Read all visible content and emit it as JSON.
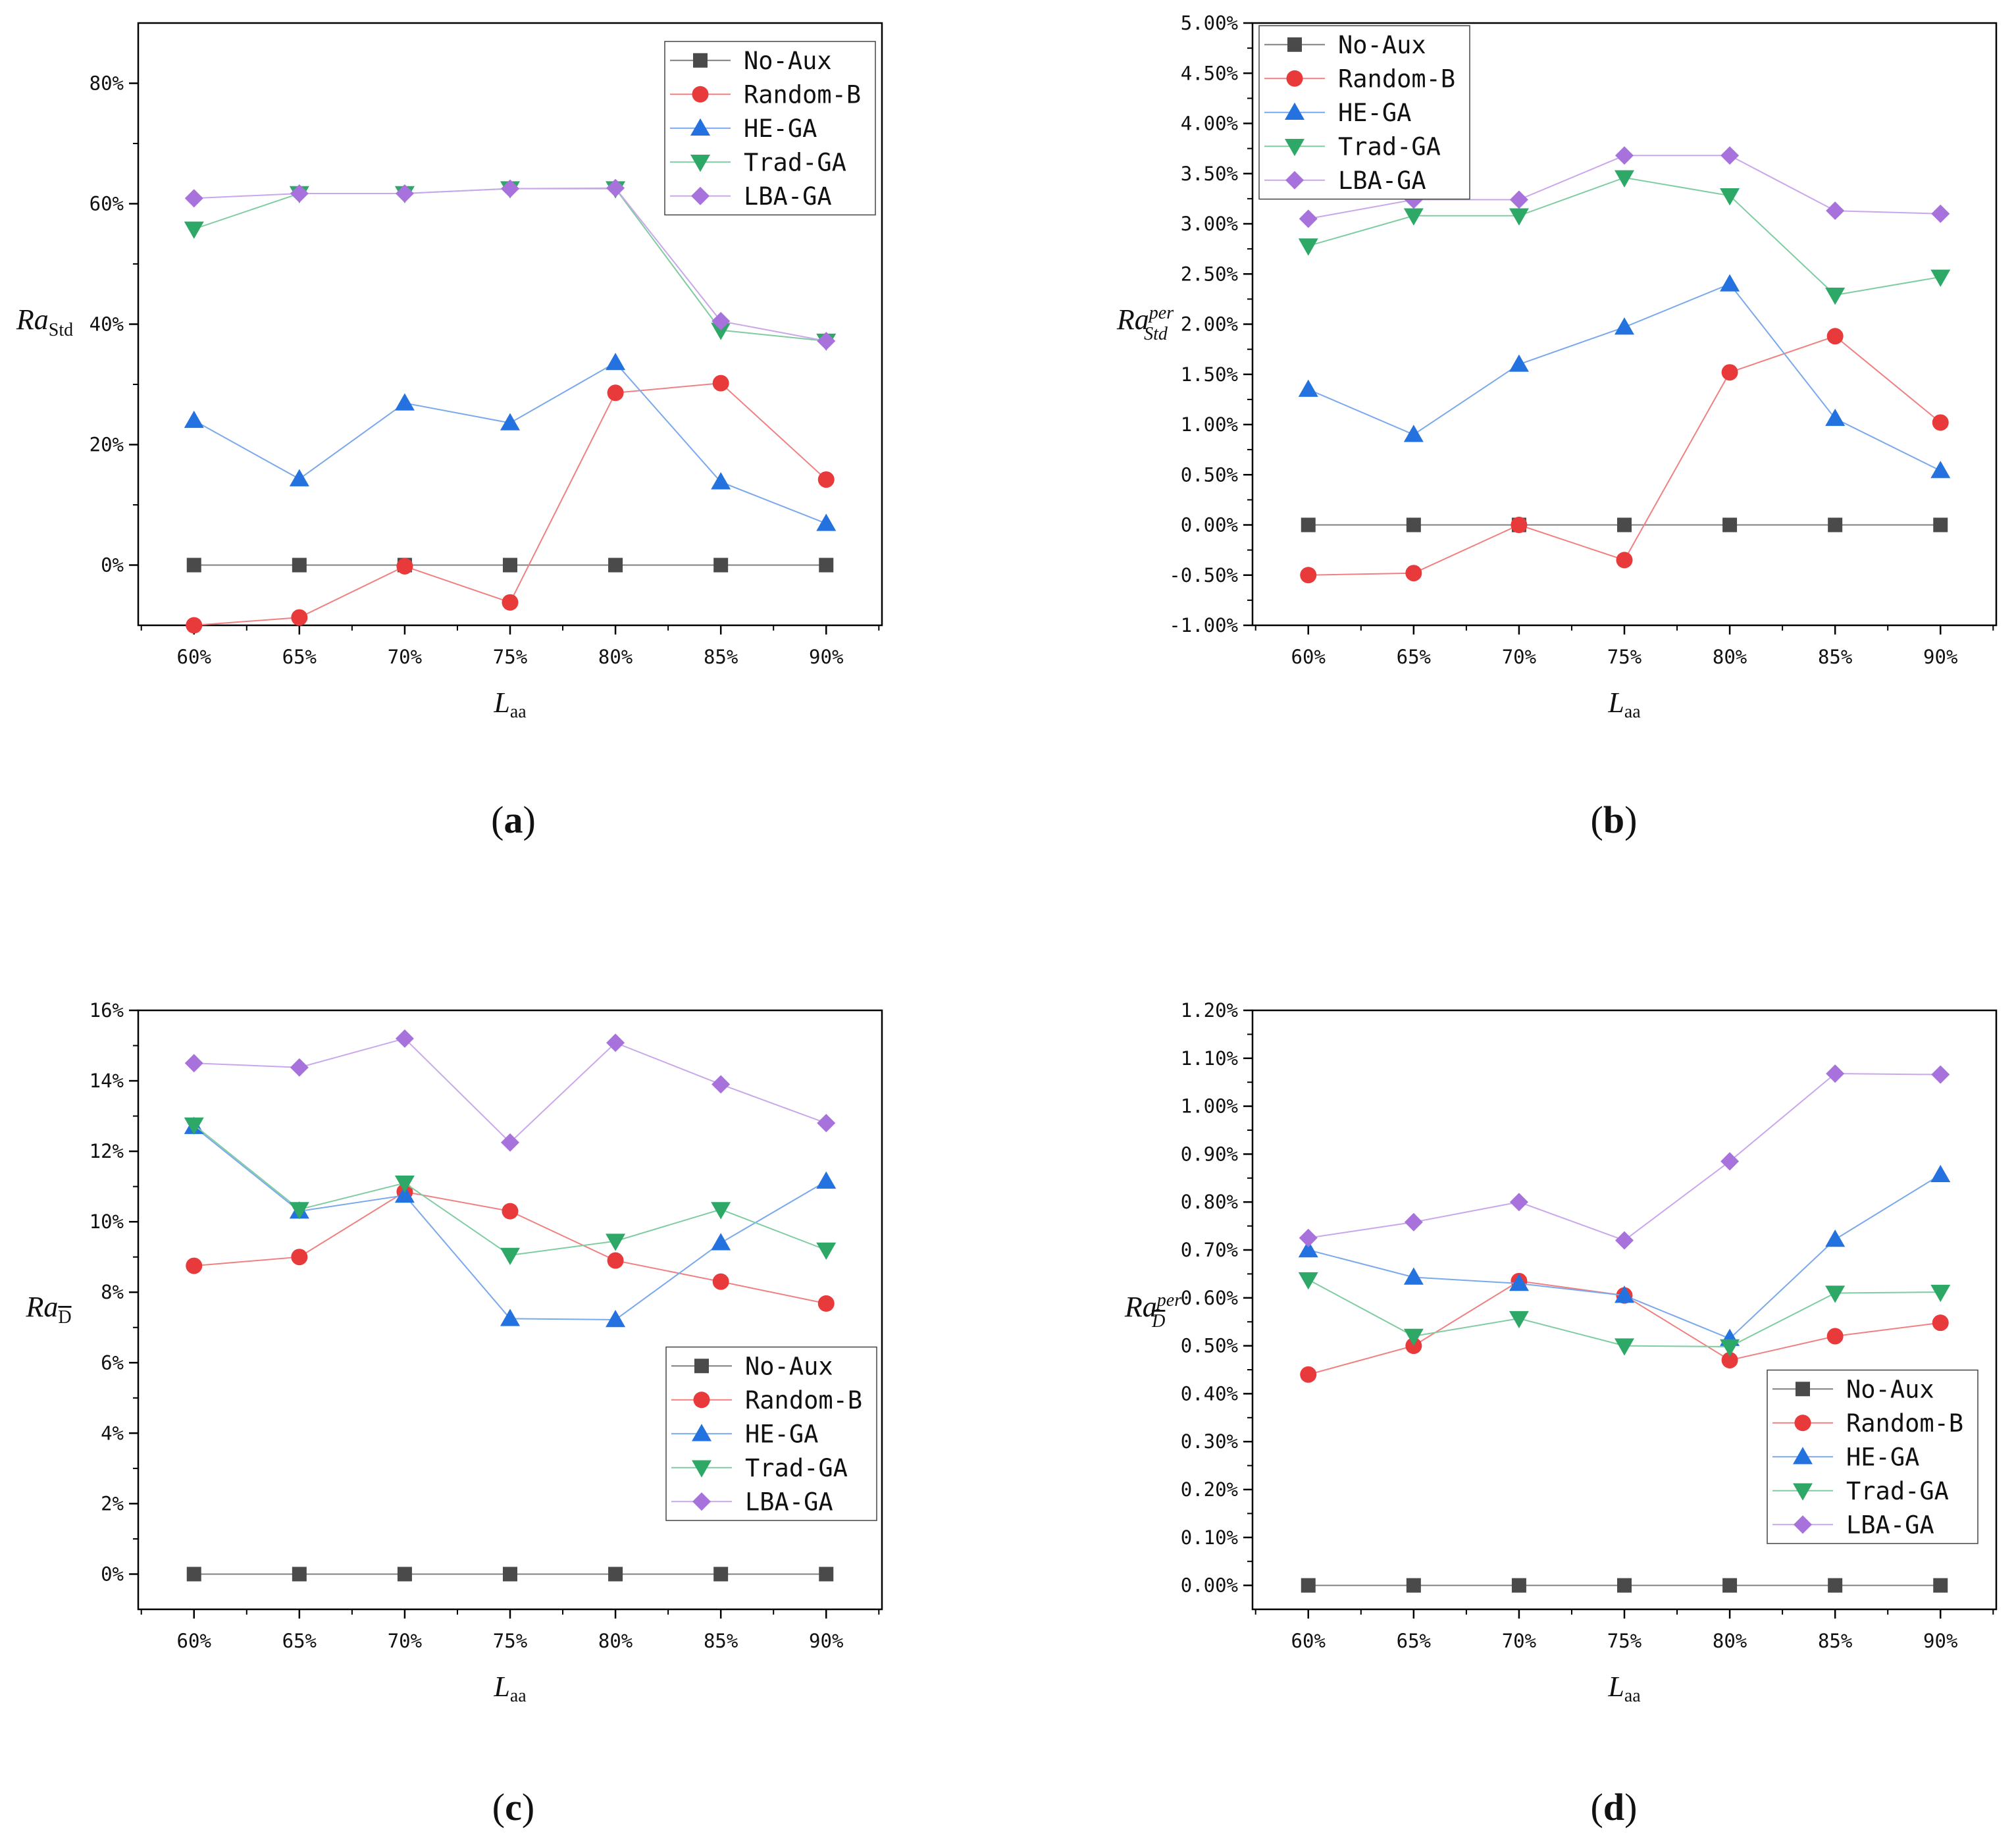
{
  "figure": {
    "x_categories": [
      "60%",
      "65%",
      "70%",
      "75%",
      "80%",
      "85%",
      "90%"
    ],
    "x_label_main": "L",
    "x_label_sub": "aa",
    "series_styles": [
      {
        "name": "No-Aux",
        "marker": "square",
        "color": "#4a4a4a",
        "line_color": "#7f7f7f"
      },
      {
        "name": "Random-B",
        "marker": "circle",
        "color": "#e8393b",
        "line_color": "#f08080"
      },
      {
        "name": "HE-GA",
        "marker": "triangle-up",
        "color": "#2372e0",
        "line_color": "#7aa8ec"
      },
      {
        "name": "Trad-GA",
        "marker": "triangle-down",
        "color": "#2ea866",
        "line_color": "#7fcca0"
      },
      {
        "name": "LBA-GA",
        "marker": "diamond",
        "color": "#a872dc",
        "line_color": "#c9a7ec"
      }
    ]
  },
  "chart_data": [
    {
      "type": "line",
      "panel_label": "(a)",
      "ylabel_main": "Ra",
      "ylabel_sub": "Std",
      "ylabel_sup": "",
      "categories": [
        "60%",
        "65%",
        "70%",
        "75%",
        "80%",
        "85%",
        "90%"
      ],
      "ylim": [
        -10,
        90
      ],
      "yticks": [
        0,
        20,
        40,
        60,
        80
      ],
      "ytick_labels": [
        "0%",
        "20%",
        "40%",
        "60%",
        "80%"
      ],
      "legend": "top-right",
      "series": [
        {
          "name": "No-Aux",
          "values": [
            0,
            0,
            0,
            0,
            0,
            0,
            0
          ]
        },
        {
          "name": "Random-B",
          "values": [
            -10,
            -8.7,
            -0.2,
            -6.2,
            28.6,
            30.2,
            14.2
          ]
        },
        {
          "name": "HE-GA",
          "values": [
            24,
            14.3,
            26.9,
            23.6,
            33.6,
            13.8,
            6.9
          ]
        },
        {
          "name": "Trad-GA",
          "values": [
            55.8,
            61.7,
            61.7,
            62.5,
            62.5,
            39,
            37.2
          ]
        },
        {
          "name": "LBA-GA",
          "values": [
            60.9,
            61.7,
            61.7,
            62.5,
            62.6,
            40.5,
            37.2
          ]
        }
      ]
    },
    {
      "type": "line",
      "panel_label": "(b)",
      "ylabel_main": "Ra",
      "ylabel_sub": "Std",
      "ylabel_sup": "per",
      "categories": [
        "60%",
        "65%",
        "70%",
        "75%",
        "80%",
        "85%",
        "90%"
      ],
      "ylim": [
        -1.0,
        5.0
      ],
      "yticks": [
        -1.0,
        -0.5,
        0.0,
        0.5,
        1.0,
        1.5,
        2.0,
        2.5,
        3.0,
        3.5,
        4.0,
        4.5,
        5.0
      ],
      "ytick_labels": [
        "-1.00%",
        "-0.50%",
        "0.00%",
        "0.50%",
        "1.00%",
        "1.50%",
        "2.00%",
        "2.50%",
        "3.00%",
        "3.50%",
        "4.00%",
        "4.50%",
        "5.00%"
      ],
      "legend": "top-left",
      "series": [
        {
          "name": "No-Aux",
          "values": [
            0,
            0,
            0,
            0,
            0,
            0,
            0
          ]
        },
        {
          "name": "Random-B",
          "values": [
            -0.5,
            -0.48,
            0.0,
            -0.35,
            1.52,
            1.88,
            1.02
          ]
        },
        {
          "name": "HE-GA",
          "values": [
            1.35,
            0.9,
            1.6,
            1.97,
            2.4,
            1.06,
            0.54
          ]
        },
        {
          "name": "Trad-GA",
          "values": [
            2.78,
            3.08,
            3.08,
            3.46,
            3.28,
            2.29,
            2.47
          ]
        },
        {
          "name": "LBA-GA",
          "values": [
            3.05,
            3.24,
            3.24,
            3.68,
            3.68,
            3.13,
            3.1
          ]
        }
      ]
    },
    {
      "type": "line",
      "panel_label": "(c)",
      "ylabel_main": "Ra",
      "ylabel_sub": "D",
      "ylabel_sup": "",
      "categories": [
        "60%",
        "65%",
        "70%",
        "75%",
        "80%",
        "85%",
        "90%"
      ],
      "ylim": [
        -1,
        16
      ],
      "yticks": [
        0,
        2,
        4,
        6,
        8,
        10,
        12,
        14,
        16
      ],
      "ytick_labels": [
        "0%",
        "2%",
        "4%",
        "6%",
        "8%",
        "10%",
        "12%",
        "14%",
        "16%"
      ],
      "legend": "bottom-right",
      "series": [
        {
          "name": "No-Aux",
          "values": [
            0,
            0,
            0,
            0,
            0,
            0,
            0
          ]
        },
        {
          "name": "Random-B",
          "values": [
            8.75,
            9.0,
            10.85,
            10.3,
            8.9,
            8.3,
            7.68
          ]
        },
        {
          "name": "HE-GA",
          "values": [
            12.7,
            10.3,
            10.75,
            7.25,
            7.22,
            9.4,
            11.15
          ]
        },
        {
          "name": "Trad-GA",
          "values": [
            12.75,
            10.35,
            11.1,
            9.05,
            9.45,
            10.35,
            9.2
          ]
        },
        {
          "name": "LBA-GA",
          "values": [
            14.5,
            14.38,
            15.2,
            12.25,
            15.08,
            13.9,
            12.8
          ]
        }
      ]
    },
    {
      "type": "line",
      "panel_label": "(d)",
      "ylabel_main": "Ra",
      "ylabel_sub": "D",
      "ylabel_sup": "per",
      "categories": [
        "60%",
        "65%",
        "70%",
        "75%",
        "80%",
        "85%",
        "90%"
      ],
      "ylim": [
        -0.05,
        1.2
      ],
      "yticks": [
        0.0,
        0.1,
        0.2,
        0.3,
        0.4,
        0.5,
        0.6,
        0.7,
        0.8,
        0.9,
        1.0,
        1.1,
        1.2
      ],
      "ytick_labels": [
        "0.00%",
        "0.10%",
        "0.20%",
        "0.30%",
        "0.40%",
        "0.50%",
        "0.60%",
        "0.70%",
        "0.80%",
        "0.90%",
        "1.00%",
        "1.10%",
        "1.20%"
      ],
      "legend": "bottom-right",
      "series": [
        {
          "name": "No-Aux",
          "values": [
            0,
            0,
            0,
            0,
            0,
            0,
            0
          ]
        },
        {
          "name": "Random-B",
          "values": [
            0.44,
            0.5,
            0.635,
            0.605,
            0.47,
            0.52,
            0.548
          ]
        },
        {
          "name": "HE-GA",
          "values": [
            0.7,
            0.643,
            0.63,
            0.605,
            0.515,
            0.722,
            0.857
          ]
        },
        {
          "name": "Trad-GA",
          "values": [
            0.638,
            0.52,
            0.557,
            0.5,
            0.498,
            0.61,
            0.612
          ]
        },
        {
          "name": "LBA-GA",
          "values": [
            0.725,
            0.758,
            0.8,
            0.72,
            0.885,
            1.068,
            1.066
          ]
        }
      ]
    }
  ]
}
